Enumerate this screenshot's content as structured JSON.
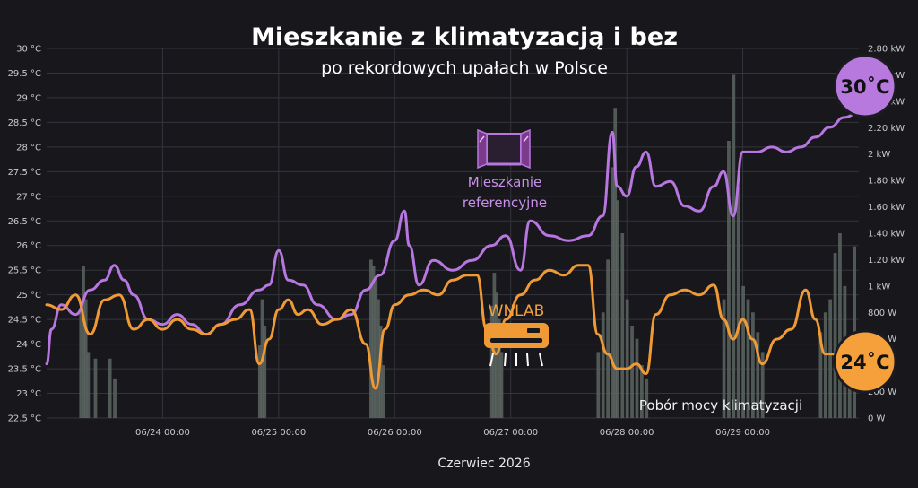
{
  "chart_data": {
    "type": "line",
    "title": "Mieszkanie z klimatyzacją i bez",
    "subtitle": "po rekordowych upałach w Polsce",
    "xlabel": "Czerwiec 2026",
    "x_ticks": [
      "06/24 00:00",
      "06/25 00:00",
      "06/26 00:00",
      "06/27 00:00",
      "06/28 00:00",
      "06/29 00:00"
    ],
    "x_range": [
      "06/23 00:00",
      "06/30 00:00"
    ],
    "y_left": {
      "ticks": [
        "22.5 °C",
        "23 °C",
        "23.5 °C",
        "24 °C",
        "24.5 °C",
        "25 °C",
        "25.5 °C",
        "26 °C",
        "26.5 °C",
        "27 °C",
        "27.5 °C",
        "28 °C",
        "28.5 °C",
        "29 °C",
        "29.5 °C",
        "30 °C"
      ],
      "ylim": [
        22.5,
        30
      ]
    },
    "y_right": {
      "ticks": [
        "0 W",
        "200 W",
        "400 W",
        "600 W",
        "800 W",
        "1 kW",
        "1.20 kW",
        "1.40 kW",
        "1.60 kW",
        "1.80 kW",
        "2 kW",
        "2.20 kW",
        "2.40 kW",
        "2.60 kW",
        "2.80 kW"
      ],
      "ylim": [
        0,
        2800
      ]
    },
    "grid": true,
    "series": [
      {
        "name": "Mieszkanie referencyjne",
        "axis": "left",
        "color": "#b876e0",
        "points": [
          [
            "06/23 00:00",
            23.6
          ],
          [
            "06/23 01:00",
            24.3
          ],
          [
            "06/23 03:00",
            24.8
          ],
          [
            "06/23 06:00",
            24.6
          ],
          [
            "06/23 09:00",
            25.1
          ],
          [
            "06/23 12:00",
            25.3
          ],
          [
            "06/23 14:00",
            25.6
          ],
          [
            "06/23 16:00",
            25.3
          ],
          [
            "06/23 18:00",
            25.0
          ],
          [
            "06/23 21:00",
            24.5
          ],
          [
            "06/24 00:00",
            24.4
          ],
          [
            "06/24 03:00",
            24.6
          ],
          [
            "06/24 06:00",
            24.4
          ],
          [
            "06/24 09:00",
            24.2
          ],
          [
            "06/24 12:00",
            24.4
          ],
          [
            "06/24 16:00",
            24.8
          ],
          [
            "06/24 20:00",
            25.1
          ],
          [
            "06/24 22:00",
            25.2
          ],
          [
            "06/25 00:00",
            25.9
          ],
          [
            "06/25 02:00",
            25.3
          ],
          [
            "06/25 05:00",
            25.2
          ],
          [
            "06/25 08:00",
            24.8
          ],
          [
            "06/25 12:00",
            24.5
          ],
          [
            "06/25 15:00",
            24.6
          ],
          [
            "06/25 18:00",
            25.1
          ],
          [
            "06/25 21:00",
            25.4
          ],
          [
            "06/26 00:00",
            26.1
          ],
          [
            "06/26 02:00",
            26.7
          ],
          [
            "06/26 03:00",
            26.0
          ],
          [
            "06/26 05:00",
            25.2
          ],
          [
            "06/26 08:00",
            25.7
          ],
          [
            "06/26 12:00",
            25.5
          ],
          [
            "06/26 16:00",
            25.7
          ],
          [
            "06/26 20:00",
            26.0
          ],
          [
            "06/26 23:00",
            26.2
          ],
          [
            "06/27 02:00",
            25.5
          ],
          [
            "06/27 04:00",
            26.5
          ],
          [
            "06/27 08:00",
            26.2
          ],
          [
            "06/27 12:00",
            26.1
          ],
          [
            "06/27 16:00",
            26.2
          ],
          [
            "06/27 19:00",
            26.6
          ],
          [
            "06/27 21:00",
            28.3
          ],
          [
            "06/27 22:00",
            27.2
          ],
          [
            "06/28 00:00",
            27.0
          ],
          [
            "06/28 02:00",
            27.6
          ],
          [
            "06/28 04:00",
            27.9
          ],
          [
            "06/28 06:00",
            27.2
          ],
          [
            "06/28 09:00",
            27.3
          ],
          [
            "06/28 12:00",
            26.8
          ],
          [
            "06/28 15:00",
            26.7
          ],
          [
            "06/28 18:00",
            27.2
          ],
          [
            "06/28 20:00",
            27.5
          ],
          [
            "06/28 22:00",
            26.6
          ],
          [
            "06/29 00:00",
            27.9
          ],
          [
            "06/29 03:00",
            27.9
          ],
          [
            "06/29 06:00",
            28.0
          ],
          [
            "06/29 09:00",
            27.9
          ],
          [
            "06/29 12:00",
            28.0
          ],
          [
            "06/29 15:00",
            28.2
          ],
          [
            "06/29 18:00",
            28.4
          ],
          [
            "06/29 21:00",
            28.6
          ],
          [
            "06/30 00:00",
            28.7
          ]
        ]
      },
      {
        "name": "WNLAB",
        "axis": "left",
        "color": "#f09a35",
        "points": [
          [
            "06/23 00:00",
            24.8
          ],
          [
            "06/23 03:00",
            24.7
          ],
          [
            "06/23 06:00",
            25.0
          ],
          [
            "06/23 09:00",
            24.2
          ],
          [
            "06/23 12:00",
            24.9
          ],
          [
            "06/23 15:00",
            25.0
          ],
          [
            "06/23 18:00",
            24.3
          ],
          [
            "06/23 21:00",
            24.5
          ],
          [
            "06/24 00:00",
            24.3
          ],
          [
            "06/24 03:00",
            24.5
          ],
          [
            "06/24 06:00",
            24.3
          ],
          [
            "06/24 09:00",
            24.2
          ],
          [
            "06/24 12:00",
            24.4
          ],
          [
            "06/24 15:00",
            24.5
          ],
          [
            "06/24 18:00",
            24.7
          ],
          [
            "06/24 20:00",
            23.6
          ],
          [
            "06/24 22:00",
            24.1
          ],
          [
            "06/25 00:00",
            24.7
          ],
          [
            "06/25 02:00",
            24.9
          ],
          [
            "06/25 04:00",
            24.6
          ],
          [
            "06/25 06:00",
            24.7
          ],
          [
            "06/25 09:00",
            24.4
          ],
          [
            "06/25 12:00",
            24.5
          ],
          [
            "06/25 15:00",
            24.7
          ],
          [
            "06/25 18:00",
            24.0
          ],
          [
            "06/25 20:00",
            23.1
          ],
          [
            "06/25 22:00",
            24.3
          ],
          [
            "06/26 00:00",
            24.8
          ],
          [
            "06/26 03:00",
            25.0
          ],
          [
            "06/26 06:00",
            25.1
          ],
          [
            "06/26 09:00",
            25.0
          ],
          [
            "06/26 12:00",
            25.3
          ],
          [
            "06/26 15:00",
            25.4
          ],
          [
            "06/26 17:00",
            25.4
          ],
          [
            "06/26 19:00",
            24.3
          ],
          [
            "06/26 21:00",
            23.8
          ],
          [
            "06/26 23:00",
            24.5
          ],
          [
            "06/27 02:00",
            25.0
          ],
          [
            "06/27 05:00",
            25.3
          ],
          [
            "06/27 08:00",
            25.5
          ],
          [
            "06/27 11:00",
            25.4
          ],
          [
            "06/27 14:00",
            25.6
          ],
          [
            "06/27 16:00",
            25.6
          ],
          [
            "06/27 18:00",
            24.2
          ],
          [
            "06/27 20:00",
            23.8
          ],
          [
            "06/27 22:00",
            23.5
          ],
          [
            "06/28 00:00",
            23.5
          ],
          [
            "06/28 02:00",
            23.6
          ],
          [
            "06/28 04:00",
            23.4
          ],
          [
            "06/28 06:00",
            24.6
          ],
          [
            "06/28 09:00",
            25.0
          ],
          [
            "06/28 12:00",
            25.1
          ],
          [
            "06/28 15:00",
            25.0
          ],
          [
            "06/28 18:00",
            25.2
          ],
          [
            "06/28 20:00",
            24.5
          ],
          [
            "06/28 22:00",
            24.1
          ],
          [
            "06/29 00:00",
            24.5
          ],
          [
            "06/29 02:00",
            24.1
          ],
          [
            "06/29 04:00",
            23.6
          ],
          [
            "06/29 07:00",
            24.1
          ],
          [
            "06/29 10:00",
            24.3
          ],
          [
            "06/29 13:00",
            25.1
          ],
          [
            "06/29 15:00",
            24.5
          ],
          [
            "06/29 17:00",
            23.8
          ],
          [
            "06/29 20:00",
            23.8
          ],
          [
            "06/29 22:00",
            23.5
          ],
          [
            "06/30 00:00",
            23.5
          ]
        ]
      },
      {
        "name": "Pobór mocy klimatyzacji",
        "axis": "right",
        "type": "bar",
        "color": "#5c6560",
        "points": [
          [
            "06/23 07:00",
            800
          ],
          [
            "06/23 07:30",
            1150
          ],
          [
            "06/23 08:00",
            900
          ],
          [
            "06/23 08:30",
            500
          ],
          [
            "06/23 10:00",
            450
          ],
          [
            "06/23 13:00",
            450
          ],
          [
            "06/23 14:00",
            300
          ],
          [
            "06/24 20:00",
            550
          ],
          [
            "06/24 20:30",
            900
          ],
          [
            "06/24 21:00",
            700
          ],
          [
            "06/25 19:00",
            1200
          ],
          [
            "06/25 19:30",
            1150
          ],
          [
            "06/25 20:00",
            1050
          ],
          [
            "06/25 20:30",
            900
          ],
          [
            "06/25 21:00",
            700
          ],
          [
            "06/25 21:30",
            400
          ],
          [
            "06/26 20:00",
            850
          ],
          [
            "06/26 20:30",
            1100
          ],
          [
            "06/26 21:00",
            950
          ],
          [
            "06/26 21:30",
            750
          ],
          [
            "06/26 22:00",
            500
          ],
          [
            "06/27 18:00",
            500
          ],
          [
            "06/27 19:00",
            800
          ],
          [
            "06/27 20:00",
            1200
          ],
          [
            "06/27 21:00",
            1900
          ],
          [
            "06/27 21:30",
            2350
          ],
          [
            "06/27 22:00",
            1650
          ],
          [
            "06/27 23:00",
            1400
          ],
          [
            "06/28 00:00",
            900
          ],
          [
            "06/28 01:00",
            700
          ],
          [
            "06/28 02:00",
            600
          ],
          [
            "06/28 03:00",
            400
          ],
          [
            "06/28 04:00",
            300
          ],
          [
            "06/28 20:00",
            900
          ],
          [
            "06/28 21:00",
            2100
          ],
          [
            "06/28 22:00",
            2600
          ],
          [
            "06/28 23:00",
            1750
          ],
          [
            "06/29 00:00",
            1000
          ],
          [
            "06/29 01:00",
            900
          ],
          [
            "06/29 02:00",
            800
          ],
          [
            "06/29 03:00",
            650
          ],
          [
            "06/29 04:00",
            500
          ],
          [
            "06/29 16:00",
            650
          ],
          [
            "06/29 17:00",
            800
          ],
          [
            "06/29 18:00",
            900
          ],
          [
            "06/29 19:00",
            1250
          ],
          [
            "06/29 20:00",
            1400
          ],
          [
            "06/29 21:00",
            1000
          ],
          [
            "06/29 22:00",
            600
          ],
          [
            "06/29 23:00",
            1300
          ]
        ]
      }
    ],
    "annotations": {
      "reference_label_1": "Mieszkanie",
      "reference_label_2": "referencyjne",
      "ac_label": "WNLAB",
      "power_label": "Pobór mocy klimatyzacji",
      "badge_hot": "30˚C",
      "badge_cool": "24˚C"
    },
    "colors": {
      "background": "#17171c",
      "grid": "#34343c",
      "reference_line": "#b876e0",
      "ac_line": "#f09a35",
      "power_bars": "#5c6560",
      "badge_hot": "#b779dd",
      "badge_cool": "#f5a03a"
    },
    "icons": [
      "open-window-icon",
      "air-conditioner-icon"
    ]
  }
}
